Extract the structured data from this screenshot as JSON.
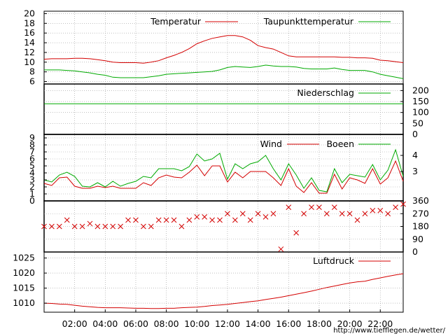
{
  "colors": {
    "red": "#d40000",
    "green": "#00aa00",
    "frame": "#000000",
    "grid": "#999999"
  },
  "credit": "http://www.tiefflegen.de/wetter/",
  "chart_data": [
    {
      "id": "temperature",
      "type": "line",
      "ylim": [
        5.5,
        20.5
      ],
      "yticks": [
        "6",
        "8",
        "10",
        "12",
        "14",
        "16",
        "18",
        "20"
      ],
      "ytick_values": [
        6,
        8,
        10,
        12,
        14,
        16,
        18,
        20
      ],
      "x": [
        0,
        0.5,
        1,
        1.5,
        2,
        2.5,
        3,
        3.5,
        4,
        4.5,
        5,
        5.5,
        6,
        6.5,
        7,
        7.5,
        8,
        8.5,
        9,
        9.5,
        10,
        10.5,
        11,
        11.5,
        12,
        12.5,
        13,
        13.5,
        14,
        14.5,
        15,
        15.5,
        16,
        16.5,
        17,
        17.5,
        18,
        18.5,
        19,
        19.5,
        20,
        20.5,
        21,
        21.5,
        22,
        22.5,
        23,
        23.5
      ],
      "series": [
        {
          "name": "Temperatur",
          "color": "red",
          "values": [
            10.6,
            10.7,
            10.7,
            10.7,
            10.8,
            10.8,
            10.7,
            10.5,
            10.3,
            10,
            9.9,
            9.9,
            9.9,
            9.8,
            10,
            10.3,
            10.9,
            11.4,
            12,
            12.8,
            13.8,
            14.4,
            14.9,
            15.2,
            15.5,
            15.5,
            15.2,
            14.5,
            13.4,
            13,
            12.7,
            12,
            11.3,
            11.1,
            11.1,
            11.1,
            11.1,
            11.1,
            11.1,
            11.0,
            11.0,
            10.9,
            10.9,
            10.8,
            10.4,
            10.3,
            10.1,
            9.9
          ]
        },
        {
          "name": "Taupunkttemperatur",
          "color": "green",
          "values": [
            8.4,
            8.4,
            8.4,
            8.3,
            8.2,
            8,
            7.8,
            7.5,
            7.3,
            6.9,
            6.8,
            6.8,
            6.8,
            6.8,
            7,
            7.2,
            7.5,
            7.6,
            7.7,
            7.8,
            7.9,
            8,
            8.1,
            8.4,
            8.9,
            9.1,
            9.0,
            8.9,
            9.1,
            9.4,
            9.2,
            9.1,
            9.1,
            9.0,
            8.7,
            8.6,
            8.6,
            8.6,
            8.8,
            8.5,
            8.3,
            8.3,
            8.3,
            8.0,
            7.5,
            7.2,
            6.9,
            6.6
          ]
        }
      ]
    },
    {
      "id": "precipitation",
      "type": "line",
      "ylim": [
        0,
        230
      ],
      "yticks": [
        "200",
        "150",
        "100",
        "50",
        "0"
      ],
      "ytick_values": [
        200,
        150,
        100,
        50,
        0
      ],
      "x": [
        0,
        23.5
      ],
      "series": [
        {
          "name": "Niederschlag",
          "color": "green",
          "values": [
            140,
            140
          ]
        }
      ]
    },
    {
      "id": "wind",
      "type": "line",
      "ylim": [
        0,
        9.5
      ],
      "yticks": [
        "0",
        "1",
        "2",
        "3",
        "4",
        "5",
        "6",
        "7",
        "8",
        "9"
      ],
      "ytick_values": [
        0,
        1,
        2,
        3,
        4,
        5,
        6,
        7,
        8,
        9
      ],
      "yticks_right": [
        "3",
        "4"
      ],
      "x": [
        0,
        0.5,
        1,
        1.5,
        2,
        2.5,
        3,
        3.5,
        4,
        4.5,
        5,
        5.5,
        6,
        6.5,
        7,
        7.5,
        8,
        8.5,
        9,
        9.5,
        10,
        10.5,
        11,
        11.5,
        12,
        12.5,
        13,
        13.5,
        14,
        14.5,
        15,
        15.5,
        16,
        16.5,
        17,
        17.5,
        18,
        18.5,
        19,
        19.5,
        20,
        20.5,
        21,
        21.5,
        22,
        22.5,
        23,
        23.5
      ],
      "series": [
        {
          "name": "Wind",
          "color": "red",
          "values": [
            2.5,
            2.2,
            3.3,
            3.4,
            2.1,
            1.8,
            1.8,
            2.1,
            1.9,
            2.1,
            1.8,
            1.8,
            1.8,
            2.6,
            2.2,
            3.3,
            3.7,
            3.4,
            3.3,
            4.1,
            5.1,
            3.6,
            5.0,
            5.0,
            2.7,
            4.1,
            3.3,
            4.2,
            4.2,
            4.2,
            3.3,
            2.2,
            4.6,
            2.1,
            1.2,
            2.6,
            1.1,
            1.1,
            3.8,
            1.7,
            3.3,
            3.0,
            2.5,
            4.6,
            2.4,
            3.3,
            5.7,
            2.8
          ]
        },
        {
          "name": "Boeen",
          "color": "green",
          "values": [
            3.0,
            2.7,
            3.7,
            4.1,
            3.5,
            2.1,
            2.0,
            2.6,
            2.0,
            2.8,
            2.1,
            2.5,
            2.8,
            3.5,
            3.3,
            4.6,
            4.6,
            4.6,
            4.3,
            4.9,
            6.7,
            5.7,
            6.0,
            6.8,
            3.1,
            5.3,
            4.6,
            5.3,
            5.6,
            6.5,
            4.6,
            3.0,
            5.3,
            3.7,
            1.8,
            3.3,
            1.5,
            1.3,
            4.6,
            2.6,
            3.8,
            3.6,
            3.4,
            5.2,
            3.0,
            4.4,
            7.3,
            3.5
          ]
        }
      ]
    },
    {
      "id": "wind-direction",
      "type": "scatter",
      "ylim": [
        0,
        360
      ],
      "yticks_right": [
        "360",
        "270",
        "180",
        "90",
        "0"
      ],
      "ytick_values": [
        360,
        270,
        180,
        90,
        0
      ],
      "x": [
        0,
        0.5,
        1,
        1.5,
        2,
        2.5,
        3,
        3.5,
        4,
        4.5,
        5,
        5.5,
        6,
        6.5,
        7,
        7.5,
        8,
        8.5,
        9,
        9.5,
        10,
        10.5,
        11,
        11.5,
        12,
        12.5,
        13,
        13.5,
        14,
        14.5,
        15,
        15.5,
        16,
        16.5,
        17,
        17.5,
        18,
        18.5,
        19,
        19.5,
        20,
        20.5,
        21,
        21.5,
        22,
        22.5,
        23,
        23.5
      ],
      "series": [
        {
          "name": "",
          "color": "red",
          "marker": "x",
          "values": [
            180,
            180,
            180,
            225,
            180,
            180,
            200,
            180,
            180,
            180,
            180,
            225,
            225,
            180,
            180,
            225,
            225,
            225,
            180,
            225,
            247,
            247,
            225,
            225,
            270,
            225,
            270,
            225,
            270,
            247,
            270,
            20,
            315,
            135,
            270,
            315,
            315,
            270,
            315,
            270,
            270,
            225,
            270,
            292,
            292,
            270,
            315,
            337
          ]
        }
      ]
    },
    {
      "id": "pressure",
      "type": "line",
      "ylim": [
        1007,
        1027
      ],
      "yticks": [
        "1010",
        "1015",
        "1020",
        "1025"
      ],
      "ytick_values": [
        1010,
        1015,
        1020,
        1025
      ],
      "x": [
        0,
        0.5,
        1,
        1.5,
        2,
        2.5,
        3,
        3.5,
        4,
        4.5,
        5,
        5.5,
        6,
        6.5,
        7,
        7.5,
        8,
        8.5,
        9,
        9.5,
        10,
        10.5,
        11,
        11.5,
        12,
        12.5,
        13,
        13.5,
        14,
        14.5,
        15,
        15.5,
        16,
        16.5,
        17,
        17.5,
        18,
        18.5,
        19,
        19.5,
        20,
        20.5,
        21,
        21.5,
        22,
        22.5,
        23,
        23.5
      ],
      "series": [
        {
          "name": "Luftdruck",
          "color": "red",
          "values": [
            1010,
            1009.9,
            1009.7,
            1009.6,
            1009.3,
            1009.0,
            1008.8,
            1008.6,
            1008.5,
            1008.5,
            1008.5,
            1008.4,
            1008.3,
            1008.3,
            1008.2,
            1008.2,
            1008.3,
            1008.3,
            1008.5,
            1008.6,
            1008.7,
            1008.9,
            1009.2,
            1009.4,
            1009.6,
            1009.9,
            1010.2,
            1010.5,
            1010.8,
            1011.2,
            1011.6,
            1012.0,
            1012.5,
            1013.0,
            1013.5,
            1014.0,
            1014.6,
            1015.2,
            1015.7,
            1016.2,
            1016.7,
            1017.1,
            1017.3,
            1017.9,
            1018.4,
            1018.9,
            1019.4,
            1019.8
          ]
        }
      ]
    }
  ],
  "xaxis": {
    "xlim": [
      0,
      23.5
    ],
    "ticks": [
      2,
      4,
      6,
      8,
      10,
      12,
      14,
      16,
      18,
      20,
      22
    ],
    "labels": [
      "02:00",
      "04:00",
      "06:00",
      "08:00",
      "10:00",
      "12:00",
      "14:00",
      "16:00",
      "18:00",
      "20:00",
      "22:00"
    ]
  }
}
